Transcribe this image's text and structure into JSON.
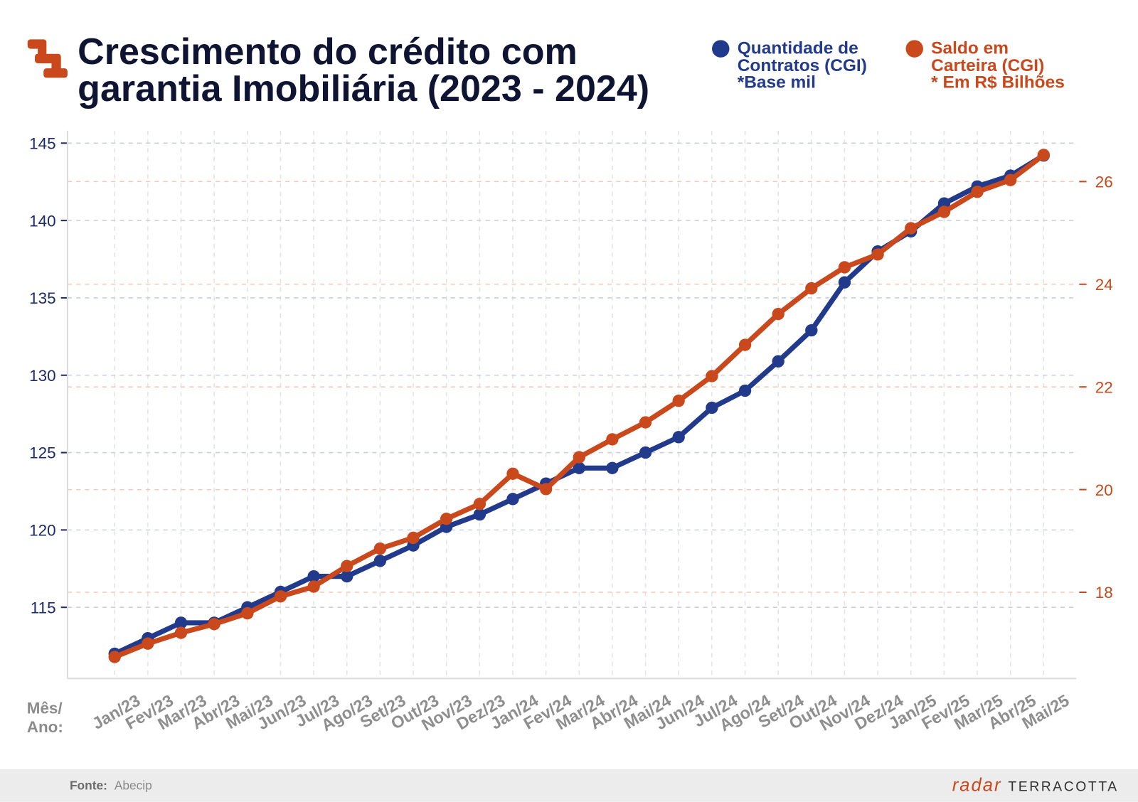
{
  "icons": {
    "logo": "terracotta-logo-icon"
  },
  "colors": {
    "title": "#0f1432",
    "blue": "#213a8c",
    "orange": "#c9481c",
    "axis_label_gray": "#8c8c8c",
    "footer_band": "#ececec"
  },
  "chart_data": {
    "type": "line",
    "title": [
      "Crescimento do crédito com",
      "garantia Imobiliária (2023 - 2024)"
    ],
    "xlabel": [
      "Mês/",
      "Ano:"
    ],
    "categories": [
      "Jan/23",
      "Fev/23",
      "Mar/23",
      "Abr/23",
      "Mai/23",
      "Jun/23",
      "Jul/23",
      "Ago/23",
      "Set/23",
      "Out/23",
      "Nov/23",
      "Dez/23",
      "Jan/24",
      "Fev/24",
      "Mar/24",
      "Abr/24",
      "Mai/24",
      "Jun/24",
      "Jul/24",
      "Ago/24",
      "Set/24",
      "Out/24",
      "Nov/24",
      "Dez/24",
      "Jan/25",
      "Fev/25",
      "Mar/25",
      "Abr/25",
      "Mai/25"
    ],
    "series": [
      {
        "legend": [
          "Quantidade de",
          "Contratos (CGI)",
          "*Base mil"
        ],
        "color": "#213a8c",
        "values": [
          112,
          113,
          114,
          114,
          115,
          116,
          117,
          117,
          118,
          119,
          120.2,
          121,
          122,
          123,
          124,
          124,
          125,
          126,
          127.9,
          129,
          130.9,
          132.9,
          136,
          138,
          139.3,
          141.1,
          142.2,
          142.9,
          144.2
        ]
      },
      {
        "legend": [
          "Saldo em",
          "Carteira (CGI)",
          "* Em R$ Bilhões"
        ],
        "color": "#c9481c",
        "values": [
          16.74,
          17.0,
          17.21,
          17.38,
          17.59,
          17.92,
          18.11,
          18.51,
          18.85,
          19.06,
          19.43,
          19.72,
          20.31,
          20.01,
          20.63,
          20.98,
          21.31,
          21.73,
          22.21,
          22.82,
          23.42,
          23.92,
          24.33,
          24.58,
          25.09,
          25.41,
          25.8,
          26.03,
          26.52
        ]
      }
    ],
    "y_axes": [
      {
        "ticks": [
          115,
          120,
          125,
          130,
          135,
          140,
          145
        ],
        "lim": [
          110.4,
          145.8
        ],
        "color": "#1c2b6b"
      },
      {
        "ticks": [
          18,
          20,
          22,
          24,
          26
        ],
        "lim": [
          16.32,
          26.99
        ],
        "color": "#c9481c"
      }
    ],
    "grid": true,
    "legend_position": "top-right"
  },
  "footer": {
    "source_label": "Fonte:",
    "source": "Abecip",
    "brand_radar": "radar",
    "brand_name": "TERRACOTTA"
  }
}
